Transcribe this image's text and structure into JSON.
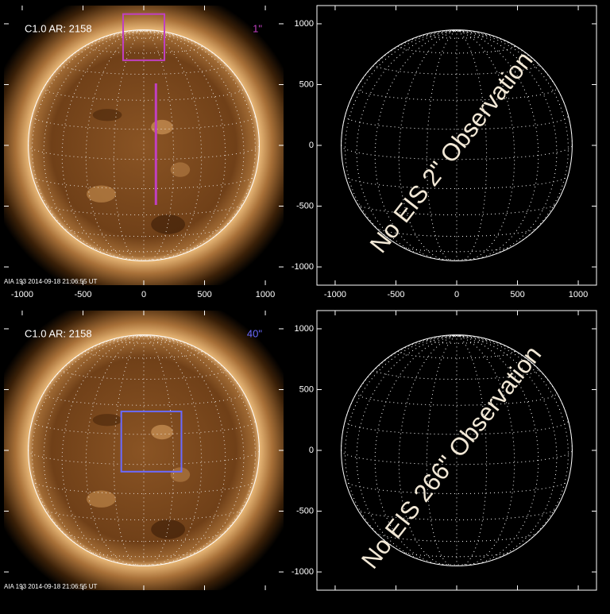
{
  "axes": {
    "xlim": [
      -1150,
      1150
    ],
    "ylim": [
      -1150,
      1150
    ],
    "ticks": [
      -1000,
      -500,
      0,
      500,
      1000
    ]
  },
  "panels": [
    {
      "type": "image",
      "label": "C1.0 AR: 2158",
      "slit": "1\"",
      "slit_color": "#c040c0",
      "footer": "AIA 193  2014-09-18 21:06:55 UT"
    },
    {
      "type": "empty",
      "annotation": "No EIS 2\" Observation"
    },
    {
      "type": "image",
      "label": "C1.0 AR: 2158",
      "slit": "40\"",
      "slit_color": "#6a6aff",
      "footer": "AIA 193  2014-09-18 21:06:55 UT"
    },
    {
      "type": "empty",
      "annotation": "No EIS 266\" Observation"
    }
  ]
}
